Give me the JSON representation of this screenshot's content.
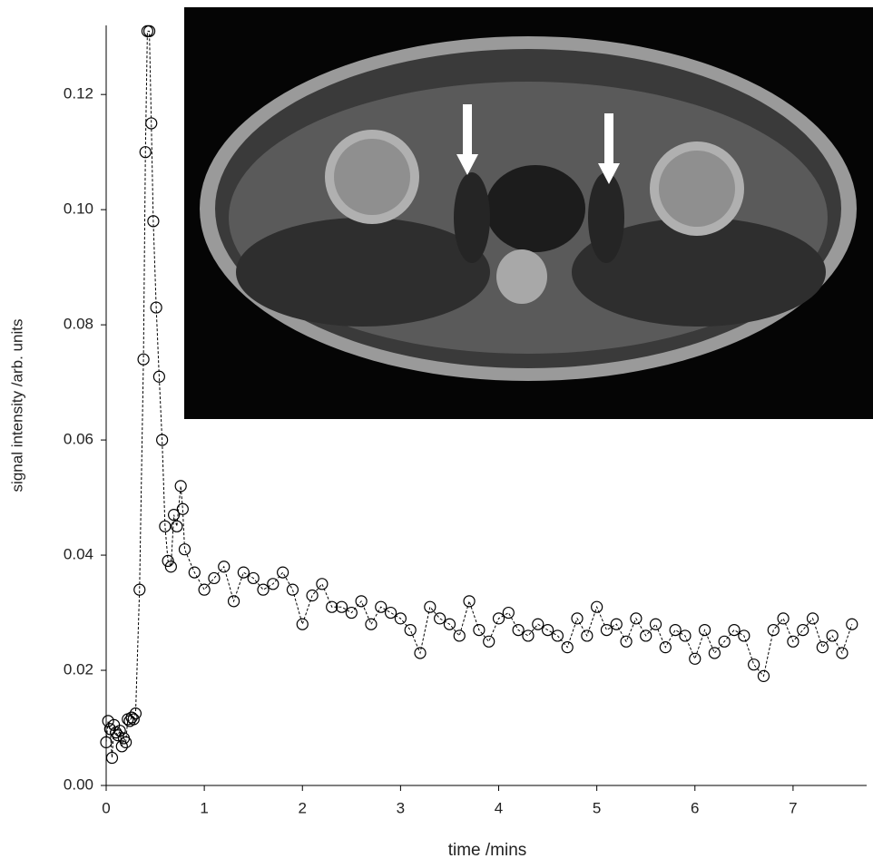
{
  "chart_data": {
    "type": "scatter",
    "x_label": "time /mins",
    "y_label": "signal intensity /arb. units",
    "x": [
      0,
      0.02,
      0.04,
      0.06,
      0.08,
      0.1,
      0.12,
      0.14,
      0.16,
      0.18,
      0.2,
      0.22,
      0.24,
      0.26,
      0.28,
      0.3,
      0.34,
      0.38,
      0.4,
      0.42,
      0.44,
      0.46,
      0.48,
      0.51,
      0.54,
      0.57,
      0.6,
      0.63,
      0.66,
      0.69,
      0.72,
      0.76,
      0.78,
      0.8,
      0.9,
      1.0,
      1.1,
      1.2,
      1.3,
      1.4,
      1.5,
      1.6,
      1.7,
      1.8,
      1.9,
      2.0,
      2.1,
      2.2,
      2.3,
      2.4,
      2.5,
      2.6,
      2.7,
      2.8,
      2.9,
      3.0,
      3.1,
      3.2,
      3.3,
      3.4,
      3.5,
      3.6,
      3.7,
      3.8,
      3.9,
      4.0,
      4.1,
      4.2,
      4.3,
      4.4,
      4.5,
      4.6,
      4.7,
      4.8,
      4.9,
      5.0,
      5.1,
      5.2,
      5.3,
      5.4,
      5.5,
      5.6,
      5.7,
      5.8,
      5.9,
      6.0,
      6.1,
      6.2,
      6.3,
      6.4,
      6.5,
      6.6,
      6.7,
      6.8,
      6.9,
      7.0,
      7.1,
      7.2,
      7.3,
      7.4,
      7.5,
      7.6
    ],
    "values": [
      0.0075,
      0.0112,
      0.0098,
      0.0048,
      0.0105,
      0.0092,
      0.0087,
      0.0095,
      0.0068,
      0.0082,
      0.0075,
      0.0115,
      0.0112,
      0.0118,
      0.0115,
      0.0125,
      0.034,
      0.074,
      0.11,
      0.131,
      0.131,
      0.115,
      0.098,
      0.083,
      0.071,
      0.06,
      0.045,
      0.039,
      0.038,
      0.047,
      0.045,
      0.052,
      0.048,
      0.041,
      0.037,
      0.034,
      0.036,
      0.038,
      0.032,
      0.037,
      0.036,
      0.034,
      0.035,
      0.037,
      0.034,
      0.028,
      0.033,
      0.035,
      0.031,
      0.031,
      0.03,
      0.032,
      0.028,
      0.031,
      0.03,
      0.029,
      0.027,
      0.023,
      0.031,
      0.029,
      0.028,
      0.026,
      0.032,
      0.027,
      0.025,
      0.029,
      0.03,
      0.027,
      0.026,
      0.028,
      0.027,
      0.026,
      0.024,
      0.029,
      0.026,
      0.031,
      0.027,
      0.028,
      0.025,
      0.029,
      0.026,
      0.028,
      0.024,
      0.027,
      0.026,
      0.022,
      0.027,
      0.023,
      0.025,
      0.027,
      0.026,
      0.021,
      0.019,
      0.027,
      0.029,
      0.025,
      0.027,
      0.029,
      0.024,
      0.026,
      0.023,
      0.028
    ],
    "color": "#000000",
    "line": "dashed",
    "xlim": [
      0,
      7.75
    ],
    "ylim": [
      0,
      0.132
    ],
    "xticks": [
      0,
      1,
      2,
      3,
      4,
      5,
      6,
      7
    ],
    "yticks": [
      {
        "value": 0,
        "label": "0.00"
      },
      0.02,
      0.04,
      0.06,
      0.08,
      {
        "value": 0.1,
        "label": "0.10"
      },
      0.12
    ]
  }
}
